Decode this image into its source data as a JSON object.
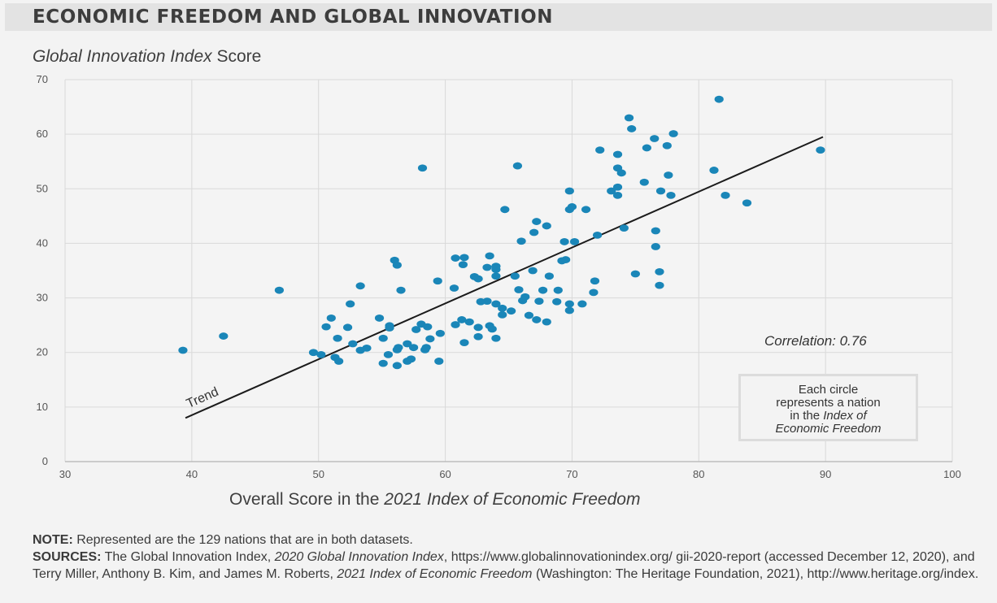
{
  "title": "ECONOMIC FREEDOM AND GLOBAL INNOVATION",
  "y_axis_title": {
    "italic": "Global Innovation Index",
    "rest": " Score"
  },
  "x_axis_title": {
    "prefix": "Overall Score in the ",
    "italic": "2021 Index of Economic Freedom"
  },
  "correlation_label": "Correlation: 0.76",
  "trend_label": "Trend",
  "circle_note": {
    "line1": "Each circle",
    "line2": "represents a nation",
    "line3_prefix": "in the ",
    "line3_italic": "Index of",
    "line4_italic": "Economic Freedom"
  },
  "note": {
    "label": "NOTE:",
    "text": " Represented are the 129 nations that are in both datasets."
  },
  "sources": {
    "label": "SOURCES:",
    "t1": " The Global Innovation Index, ",
    "i1": "2020 Global Innovation Index",
    "t2": ", https://www.globalinnovationindex.org/ gii-2020-report (accessed December 12, 2020), and Terry Miller, Anthony B. Kim, and James M. Roberts, ",
    "i2": "2021 Index of Economic Freedom",
    "t3": " (Washington: The Heritage Foundation, 2021), http://www.heritage.org/index."
  },
  "colors": {
    "point": "#1a86b8",
    "trend": "#1b1b1b",
    "grid": "#d9d9d9",
    "axis": "#bdbdbd",
    "tick_text": "#555555",
    "background": "#f3f3f3"
  },
  "chart_data": {
    "type": "scatter",
    "xlabel": "Overall Score in the 2021 Index of Economic Freedom",
    "ylabel": "Global Innovation Index Score",
    "xlim": [
      30,
      100
    ],
    "ylim": [
      0,
      70
    ],
    "xticks": [
      30,
      40,
      50,
      60,
      70,
      80,
      90,
      100
    ],
    "yticks": [
      0,
      10,
      20,
      30,
      40,
      50,
      60,
      70
    ],
    "grid": true,
    "trend_line": {
      "label": "Trend",
      "x": [
        39.5,
        89.8
      ],
      "y": [
        8.0,
        59.5
      ]
    },
    "correlation": 0.76,
    "points": [
      [
        39.3,
        20.4
      ],
      [
        42.5,
        23.0
      ],
      [
        46.9,
        31.4
      ],
      [
        49.6,
        20.0
      ],
      [
        50.2,
        19.6
      ],
      [
        50.6,
        24.7
      ],
      [
        51.0,
        26.3
      ],
      [
        51.3,
        19.1
      ],
      [
        51.5,
        22.6
      ],
      [
        51.6,
        18.4
      ],
      [
        52.3,
        24.6
      ],
      [
        52.5,
        28.9
      ],
      [
        52.7,
        21.6
      ],
      [
        53.3,
        20.4
      ],
      [
        53.3,
        32.2
      ],
      [
        53.8,
        20.8
      ],
      [
        54.8,
        26.3
      ],
      [
        55.1,
        22.6
      ],
      [
        55.1,
        18.0
      ],
      [
        55.5,
        19.6
      ],
      [
        55.6,
        24.5
      ],
      [
        55.6,
        24.9
      ],
      [
        56.0,
        36.9
      ],
      [
        56.2,
        36.0
      ],
      [
        56.2,
        20.5
      ],
      [
        56.2,
        17.6
      ],
      [
        56.3,
        20.9
      ],
      [
        56.5,
        31.4
      ],
      [
        57.0,
        18.4
      ],
      [
        57.0,
        21.6
      ],
      [
        57.3,
        18.8
      ],
      [
        57.5,
        20.9
      ],
      [
        57.7,
        24.2
      ],
      [
        58.1,
        25.2
      ],
      [
        58.2,
        53.8
      ],
      [
        58.4,
        20.5
      ],
      [
        58.5,
        20.9
      ],
      [
        58.6,
        24.7
      ],
      [
        58.8,
        22.5
      ],
      [
        59.4,
        33.1
      ],
      [
        59.5,
        18.4
      ],
      [
        59.6,
        23.5
      ],
      [
        60.7,
        31.8
      ],
      [
        60.8,
        25.1
      ],
      [
        60.8,
        37.3
      ],
      [
        61.3,
        26.0
      ],
      [
        61.4,
        36.1
      ],
      [
        61.5,
        37.4
      ],
      [
        61.5,
        21.8
      ],
      [
        61.9,
        25.6
      ],
      [
        62.3,
        33.9
      ],
      [
        62.6,
        22.9
      ],
      [
        62.6,
        33.5
      ],
      [
        62.6,
        24.6
      ],
      [
        62.8,
        29.3
      ],
      [
        63.3,
        29.4
      ],
      [
        63.3,
        35.6
      ],
      [
        63.5,
        37.7
      ],
      [
        63.5,
        24.9
      ],
      [
        63.7,
        24.3
      ],
      [
        64.0,
        22.6
      ],
      [
        64.0,
        28.9
      ],
      [
        64.0,
        34.0
      ],
      [
        64.0,
        35.2
      ],
      [
        64.0,
        35.8
      ],
      [
        64.5,
        26.9
      ],
      [
        64.5,
        28.1
      ],
      [
        64.7,
        46.2
      ],
      [
        65.2,
        27.6
      ],
      [
        65.5,
        34.0
      ],
      [
        65.7,
        54.2
      ],
      [
        65.8,
        31.5
      ],
      [
        66.0,
        40.4
      ],
      [
        66.1,
        29.5
      ],
      [
        66.3,
        30.2
      ],
      [
        66.6,
        26.8
      ],
      [
        66.9,
        35.0
      ],
      [
        67.0,
        42.0
      ],
      [
        67.2,
        44.0
      ],
      [
        67.2,
        26.0
      ],
      [
        67.4,
        29.4
      ],
      [
        67.7,
        31.4
      ],
      [
        68.0,
        43.2
      ],
      [
        68.0,
        25.6
      ],
      [
        68.2,
        34.0
      ],
      [
        68.8,
        29.3
      ],
      [
        68.9,
        31.4
      ],
      [
        69.2,
        36.8
      ],
      [
        69.4,
        40.3
      ],
      [
        69.5,
        37.0
      ],
      [
        69.8,
        27.7
      ],
      [
        69.8,
        28.9
      ],
      [
        69.8,
        46.2
      ],
      [
        69.8,
        49.6
      ],
      [
        70.0,
        46.7
      ],
      [
        70.2,
        40.3
      ],
      [
        70.8,
        28.9
      ],
      [
        71.1,
        46.2
      ],
      [
        71.7,
        31.0
      ],
      [
        71.8,
        33.1
      ],
      [
        72.0,
        41.5
      ],
      [
        72.2,
        57.1
      ],
      [
        73.1,
        49.6
      ],
      [
        73.6,
        48.8
      ],
      [
        73.6,
        50.3
      ],
      [
        73.6,
        53.8
      ],
      [
        73.6,
        56.3
      ],
      [
        73.9,
        52.9
      ],
      [
        74.1,
        42.8
      ],
      [
        74.5,
        63.0
      ],
      [
        74.7,
        61.0
      ],
      [
        75.0,
        34.4
      ],
      [
        75.7,
        51.2
      ],
      [
        75.9,
        57.5
      ],
      [
        76.5,
        59.2
      ],
      [
        76.6,
        42.3
      ],
      [
        76.6,
        39.4
      ],
      [
        76.9,
        34.8
      ],
      [
        76.9,
        32.3
      ],
      [
        77.0,
        49.6
      ],
      [
        77.5,
        57.9
      ],
      [
        77.6,
        52.5
      ],
      [
        77.8,
        48.8
      ],
      [
        78.0,
        60.1
      ],
      [
        81.2,
        53.4
      ],
      [
        81.6,
        66.4
      ],
      [
        82.1,
        48.8
      ],
      [
        83.8,
        47.4
      ],
      [
        89.6,
        57.1
      ]
    ]
  }
}
